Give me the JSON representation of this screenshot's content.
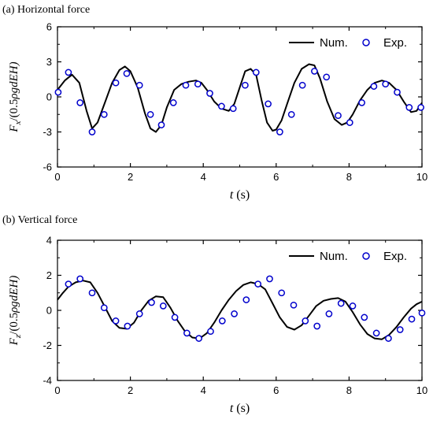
{
  "chart_data": [
    {
      "type": "line",
      "panel_label": "(a) Horizontal force",
      "xlabel": {
        "var": "t",
        "unit": "(s)"
      },
      "ylabel": {
        "base": "F",
        "sub": "x",
        "rest": "/(0.5",
        "rho": "ρ",
        "tail": "gdEH)"
      },
      "xlim": [
        0,
        10
      ],
      "ylim": [
        -6,
        6
      ],
      "xticks": [
        "0",
        "2",
        "4",
        "6",
        "8",
        "10"
      ],
      "yticks": [
        "-6",
        "-3",
        "0",
        "3",
        "6"
      ],
      "legend": {
        "position": "top-right",
        "line_label": "Num.",
        "marker_label": "Exp."
      },
      "series": [
        {
          "name": "Num.",
          "kind": "line",
          "x": [
            0,
            0.2,
            0.4,
            0.6,
            0.8,
            0.95,
            1.1,
            1.3,
            1.5,
            1.7,
            1.85,
            2.0,
            2.2,
            2.4,
            2.55,
            2.7,
            2.85,
            3.0,
            3.2,
            3.4,
            3.6,
            3.8,
            3.95,
            4.1,
            4.3,
            4.5,
            4.7,
            4.85,
            5.0,
            5.15,
            5.3,
            5.45,
            5.6,
            5.75,
            5.9,
            6.0,
            6.15,
            6.3,
            6.5,
            6.7,
            6.9,
            7.05,
            7.2,
            7.4,
            7.6,
            7.8,
            7.95,
            8.1,
            8.3,
            8.5,
            8.7,
            8.9,
            9.1,
            9.3,
            9.5,
            9.7,
            9.85,
            10.0
          ],
          "y": [
            0.6,
            1.4,
            1.9,
            1.2,
            -1.2,
            -2.7,
            -2.2,
            -0.5,
            1.2,
            2.3,
            2.6,
            2.2,
            0.8,
            -1.4,
            -2.7,
            -3.0,
            -2.4,
            -0.9,
            0.6,
            1.1,
            1.3,
            1.4,
            1.2,
            0.6,
            -0.4,
            -1.0,
            -1.2,
            -0.6,
            0.8,
            2.2,
            2.4,
            1.9,
            -0.3,
            -2.2,
            -2.9,
            -2.8,
            -2.0,
            -0.6,
            1.2,
            2.4,
            2.8,
            2.7,
            1.6,
            -0.4,
            -1.9,
            -2.4,
            -2.2,
            -1.5,
            -0.3,
            0.6,
            1.2,
            1.4,
            1.2,
            0.6,
            -0.4,
            -1.3,
            -1.2,
            -0.5
          ]
        },
        {
          "name": "Exp.",
          "kind": "markers",
          "x": [
            0.02,
            0.3,
            0.62,
            0.95,
            1.28,
            1.6,
            1.9,
            2.25,
            2.55,
            2.85,
            3.18,
            3.52,
            3.85,
            4.18,
            4.5,
            4.82,
            5.15,
            5.45,
            5.78,
            6.1,
            6.42,
            6.72,
            7.05,
            7.38,
            7.7,
            8.02,
            8.35,
            8.68,
            9.0,
            9.32,
            9.65,
            9.97
          ],
          "y": [
            0.4,
            2.1,
            -0.5,
            -3.0,
            -1.5,
            1.2,
            2.0,
            1.0,
            -1.5,
            -2.4,
            -0.5,
            1.0,
            1.1,
            0.3,
            -0.8,
            -1.0,
            1.0,
            2.1,
            -0.6,
            -3.0,
            -1.5,
            1.0,
            2.2,
            1.7,
            -1.6,
            -2.2,
            -0.5,
            0.9,
            1.1,
            0.4,
            -0.9,
            -0.9
          ]
        }
      ]
    },
    {
      "type": "line",
      "panel_label": "(b) Vertical force",
      "xlabel": {
        "var": "t",
        "unit": "(s)"
      },
      "ylabel": {
        "base": "F",
        "sub": "z",
        "rest": "/(0.5",
        "rho": "ρ",
        "tail": "gdEH)"
      },
      "xlim": [
        0,
        10
      ],
      "ylim": [
        -4,
        4
      ],
      "xticks": [
        "0",
        "2",
        "4",
        "6",
        "8",
        "10"
      ],
      "yticks": [
        "-4",
        "-2",
        "0",
        "2",
        "4"
      ],
      "legend": {
        "position": "top-right",
        "line_label": "Num.",
        "marker_label": "Exp."
      },
      "series": [
        {
          "name": "Num.",
          "kind": "line",
          "x": [
            0,
            0.15,
            0.3,
            0.5,
            0.7,
            0.9,
            1.1,
            1.3,
            1.5,
            1.7,
            1.9,
            2.1,
            2.3,
            2.5,
            2.7,
            2.9,
            3.1,
            3.3,
            3.5,
            3.7,
            3.9,
            4.1,
            4.3,
            4.5,
            4.7,
            4.9,
            5.1,
            5.3,
            5.5,
            5.7,
            5.9,
            6.1,
            6.3,
            6.5,
            6.7,
            6.9,
            7.1,
            7.3,
            7.5,
            7.7,
            7.9,
            8.1,
            8.3,
            8.5,
            8.7,
            8.9,
            9.1,
            9.3,
            9.5,
            9.7,
            9.85,
            10.0
          ],
          "y": [
            0.6,
            1.0,
            1.35,
            1.6,
            1.7,
            1.6,
            1.0,
            0.2,
            -0.6,
            -1.0,
            -1.05,
            -0.7,
            0.0,
            0.55,
            0.8,
            0.75,
            0.15,
            -0.6,
            -1.2,
            -1.55,
            -1.6,
            -1.3,
            -0.7,
            0.0,
            0.6,
            1.1,
            1.45,
            1.6,
            1.5,
            1.2,
            0.4,
            -0.4,
            -0.95,
            -1.1,
            -0.85,
            -0.3,
            0.25,
            0.55,
            0.65,
            0.7,
            0.5,
            -0.1,
            -0.8,
            -1.35,
            -1.6,
            -1.65,
            -1.4,
            -0.95,
            -0.4,
            0.1,
            0.35,
            0.5
          ]
        },
        {
          "name": "Exp.",
          "kind": "markers",
          "x": [
            0.3,
            0.62,
            0.95,
            1.28,
            1.6,
            1.92,
            2.25,
            2.58,
            2.9,
            3.22,
            3.55,
            3.88,
            4.2,
            4.52,
            4.85,
            5.18,
            5.5,
            5.82,
            6.15,
            6.48,
            6.8,
            7.12,
            7.45,
            7.78,
            8.1,
            8.42,
            8.75,
            9.08,
            9.4,
            9.72,
            10.0
          ],
          "y": [
            1.5,
            1.8,
            1.0,
            0.15,
            -0.6,
            -0.9,
            -0.2,
            0.45,
            0.25,
            -0.4,
            -1.3,
            -1.6,
            -1.2,
            -0.6,
            -0.2,
            0.6,
            1.5,
            1.8,
            1.0,
            0.3,
            -0.6,
            -0.9,
            -0.2,
            0.4,
            0.25,
            -0.4,
            -1.3,
            -1.6,
            -1.1,
            -0.5,
            -0.15
          ]
        }
      ]
    }
  ],
  "colors": {
    "line": "#000000",
    "marker": "#0000cc",
    "axis": "#000000"
  }
}
